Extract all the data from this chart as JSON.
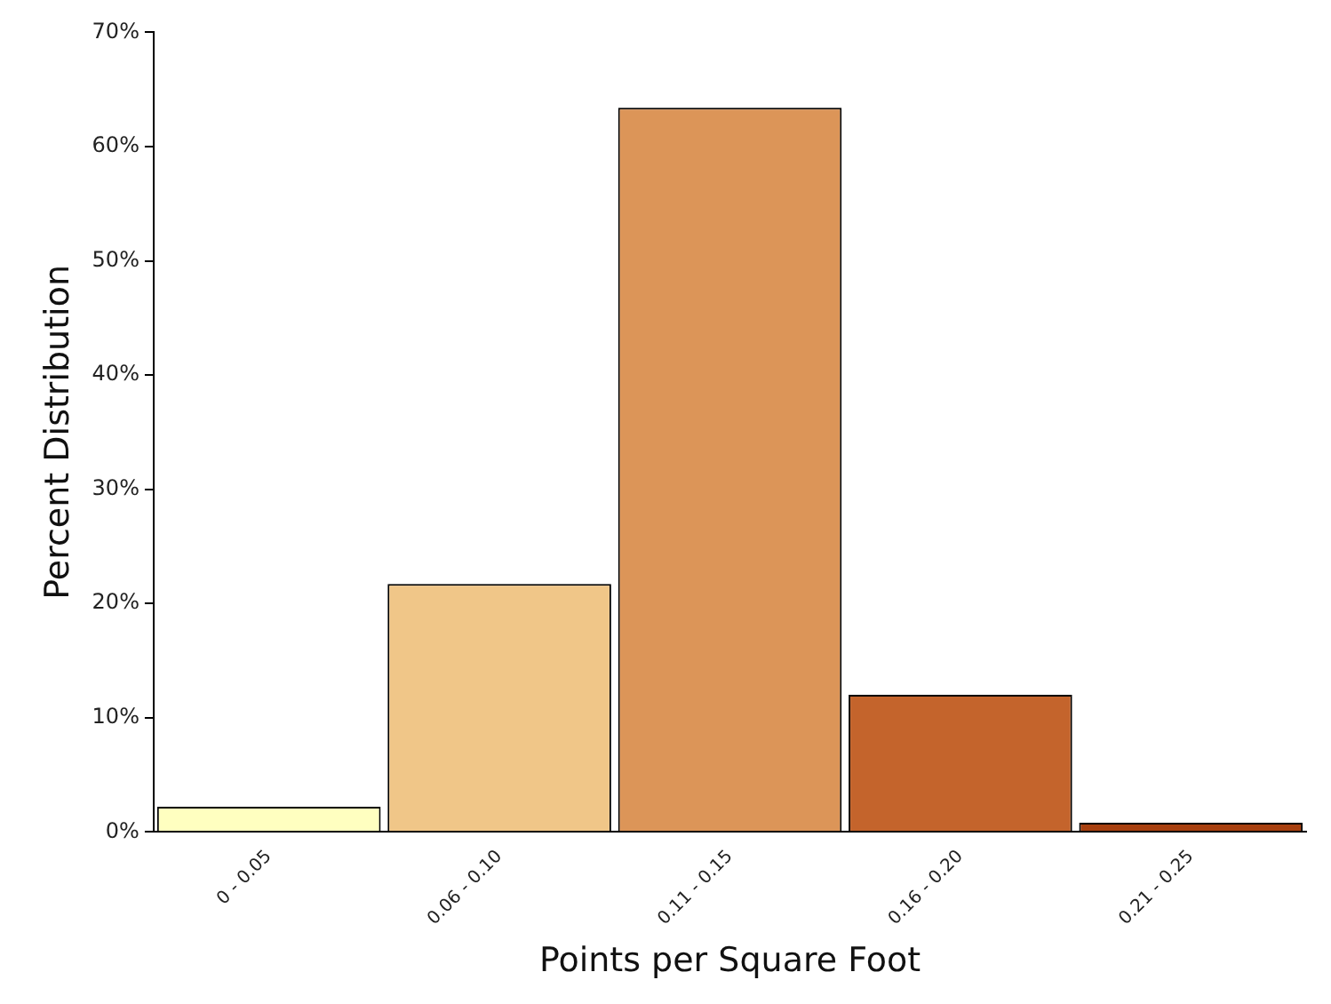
{
  "chart_data": {
    "type": "bar",
    "xlabel": "Points per Square Foot",
    "ylabel": "Percent Distribution",
    "categories": [
      "0 - 0.05",
      "0.06 - 0.10",
      "0.11 - 0.15",
      "0.16 - 0.20",
      "0.21 - 0.25"
    ],
    "values": [
      2.2,
      21.7,
      63.4,
      12.0,
      0.8
    ],
    "colors": [
      "#ffffc0",
      "#f0c688",
      "#dc9558",
      "#c4642c",
      "#a8400f"
    ],
    "ylim": [
      0,
      70
    ],
    "yticks": [
      {
        "value": 0,
        "label": "0%"
      },
      {
        "value": 10,
        "label": "10%"
      },
      {
        "value": 20,
        "label": "20%"
      },
      {
        "value": 30,
        "label": "30%"
      },
      {
        "value": 40,
        "label": "40%"
      },
      {
        "value": 50,
        "label": "50%"
      },
      {
        "value": 60,
        "label": "60%"
      },
      {
        "value": 70,
        "label": "70%"
      }
    ],
    "grid": false,
    "legend": false
  }
}
